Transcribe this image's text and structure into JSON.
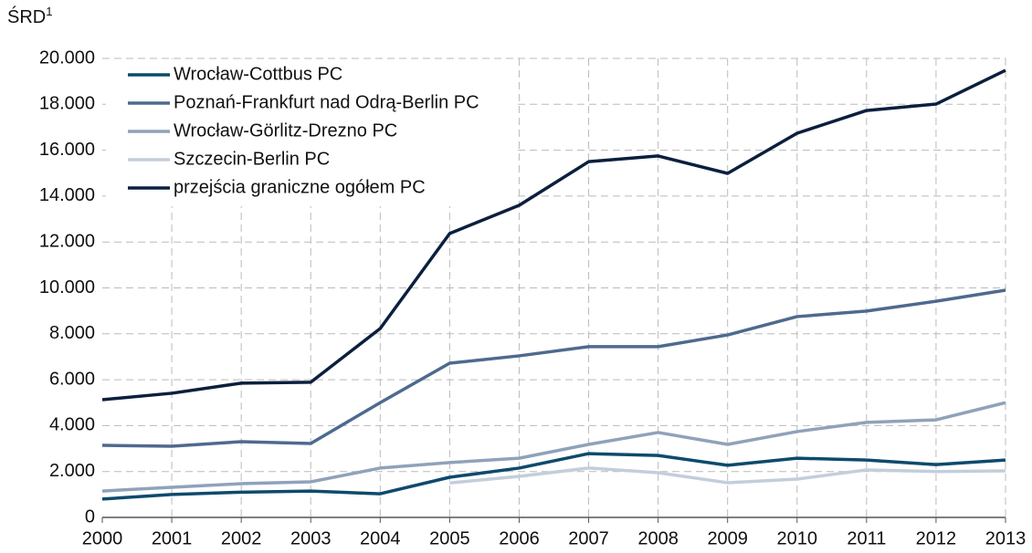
{
  "chart_data": {
    "type": "line",
    "y_label": "ŚRD",
    "y_label_sup": "1",
    "categories": [
      "2000",
      "2001",
      "2002",
      "2003",
      "2004",
      "2005",
      "2006",
      "2007",
      "2008",
      "2009",
      "2010",
      "2011",
      "2012",
      "2013"
    ],
    "series": [
      {
        "name": "Wrocław-Cottbus PC",
        "color": "#0e4a6c",
        "values": [
          800,
          1000,
          1100,
          1150,
          1030,
          1750,
          2150,
          2780,
          2700,
          2270,
          2580,
          2500,
          2300,
          2500
        ]
      },
      {
        "name": "Poznań-Frankfurt nad Odrą-Berlin PC",
        "color": "#4e6a8e",
        "values": [
          3140,
          3100,
          3300,
          3220,
          5000,
          6720,
          7040,
          7440,
          7440,
          7950,
          8750,
          8990,
          9420,
          9900
        ]
      },
      {
        "name": "Wrocław-Görlitz-Drezno PC",
        "color": "#8fa2ba",
        "values": [
          1150,
          1310,
          1470,
          1550,
          2150,
          2390,
          2580,
          3180,
          3700,
          3180,
          3740,
          4140,
          4250,
          5000
        ]
      },
      {
        "name": "Szczecin-Berlin PC",
        "color": "#c3cedb",
        "values": [
          null,
          null,
          null,
          null,
          null,
          1500,
          1790,
          2150,
          1950,
          1510,
          1670,
          2070,
          2000,
          2030
        ]
      },
      {
        "name": "przejścia graniczne ogółem PC",
        "color": "#0b1f3d",
        "values": [
          5130,
          5410,
          5850,
          5890,
          8230,
          12370,
          13600,
          15500,
          15750,
          14990,
          16740,
          17730,
          18010,
          19480
        ]
      }
    ],
    "ylim": [
      0,
      20000
    ],
    "yticks": [
      0,
      {
        "value": 2000,
        "label": "2.000"
      },
      {
        "value": 4000,
        "label": "4.000"
      },
      {
        "value": 6000,
        "label": "6.000"
      },
      {
        "value": 8000,
        "label": "8.000"
      },
      {
        "value": 10000,
        "label": "10.000"
      },
      {
        "value": 12000,
        "label": "12.000"
      },
      {
        "value": 14000,
        "label": "14.000"
      },
      {
        "value": 16000,
        "label": "16.000"
      },
      {
        "value": 18000,
        "label": "18.000"
      },
      {
        "value": 20000,
        "label": "20.000"
      }
    ],
    "grid": true,
    "legend": "upper left"
  }
}
